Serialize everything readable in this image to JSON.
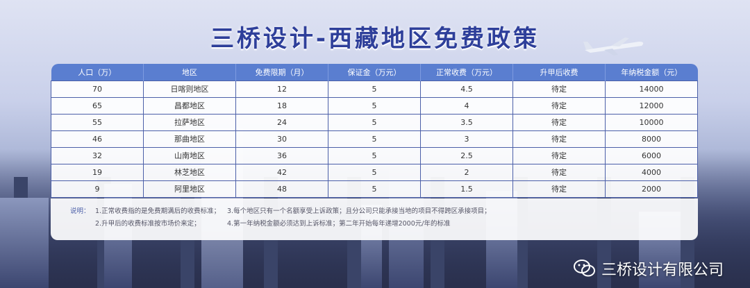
{
  "title": "三桥设计-西藏地区免费政策",
  "table": {
    "headers": [
      "人口（万）",
      "地区",
      "免费限期（月）",
      "保证金（万元）",
      "正常收费（万元）",
      "升甲后收费",
      "年纳税金额（元）"
    ],
    "rows": [
      [
        "70",
        "日喀则地区",
        "12",
        "5",
        "4.5",
        "待定",
        "14000"
      ],
      [
        "65",
        "昌都地区",
        "18",
        "5",
        "4",
        "待定",
        "12000"
      ],
      [
        "55",
        "拉萨地区",
        "24",
        "5",
        "3.5",
        "待定",
        "10000"
      ],
      [
        "46",
        "那曲地区",
        "30",
        "5",
        "3",
        "待定",
        "8000"
      ],
      [
        "32",
        "山南地区",
        "36",
        "5",
        "2.5",
        "待定",
        "6000"
      ],
      [
        "19",
        "林芝地区",
        "42",
        "5",
        "2",
        "待定",
        "4000"
      ],
      [
        "9",
        "阿里地区",
        "48",
        "5",
        "1.5",
        "待定",
        "2000"
      ]
    ]
  },
  "notes": {
    "label": "说明：",
    "items": [
      "1.正常收费指的是免费期满后的收费标准；",
      "3.每个地区只有一个名额享受上诉政策；且分公司只能承接当地的项目不得跨区承接项目；",
      "2.升甲后的收费标准按市场价来定；",
      "4.第一年纳税金额必须达到上诉标准；第二年开始每年递增2000元/年的标准"
    ]
  },
  "watermark": {
    "text": "三桥设计有限公司",
    "icon": "wechat-icon"
  }
}
